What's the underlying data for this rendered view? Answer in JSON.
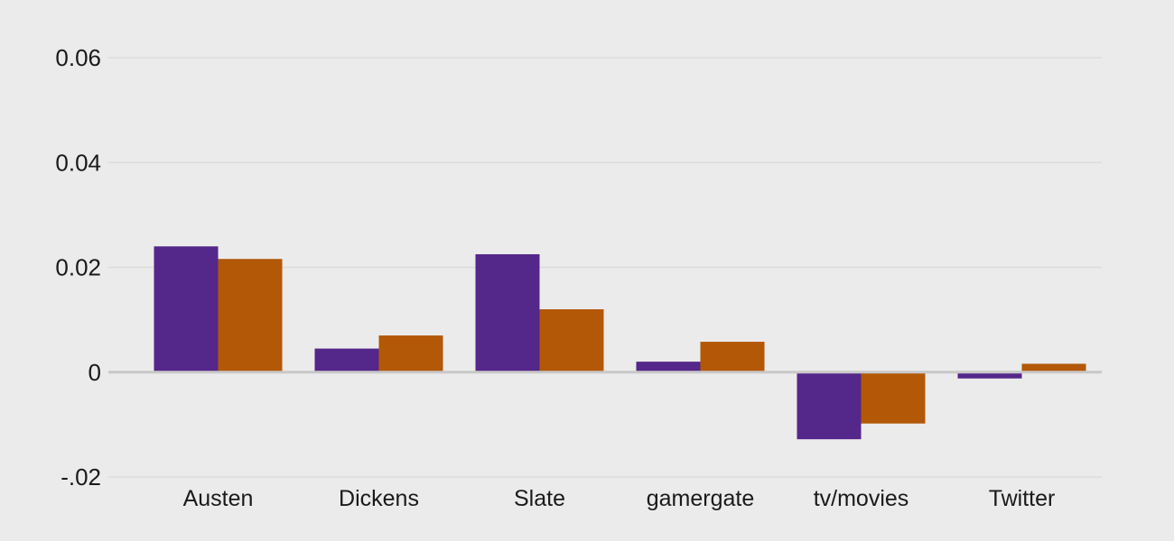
{
  "chart_data": {
    "type": "bar",
    "categories": [
      "Austen",
      "Dickens",
      "Slate",
      "gamergate",
      "tv/movies",
      "Twitter"
    ],
    "series": [
      {
        "color": "#54278a",
        "values": [
          0.024,
          0.0045,
          0.0225,
          0.002,
          -0.0128,
          -0.0012
        ]
      },
      {
        "color": "#b35806",
        "values": [
          0.0216,
          0.007,
          0.012,
          0.0058,
          -0.0098,
          0.0016
        ]
      }
    ],
    "yticks": [
      {
        "value": 0.06,
        "label": "0.06"
      },
      {
        "value": 0.04,
        "label": "0.04"
      },
      {
        "value": 0.02,
        "label": "0.02"
      },
      {
        "value": 0,
        "label": "0"
      },
      {
        "value": -0.02,
        "label": "-.02"
      }
    ],
    "ylim": [
      -0.02,
      0.06
    ],
    "grid": true,
    "title": "",
    "xlabel": "",
    "ylabel": ""
  }
}
